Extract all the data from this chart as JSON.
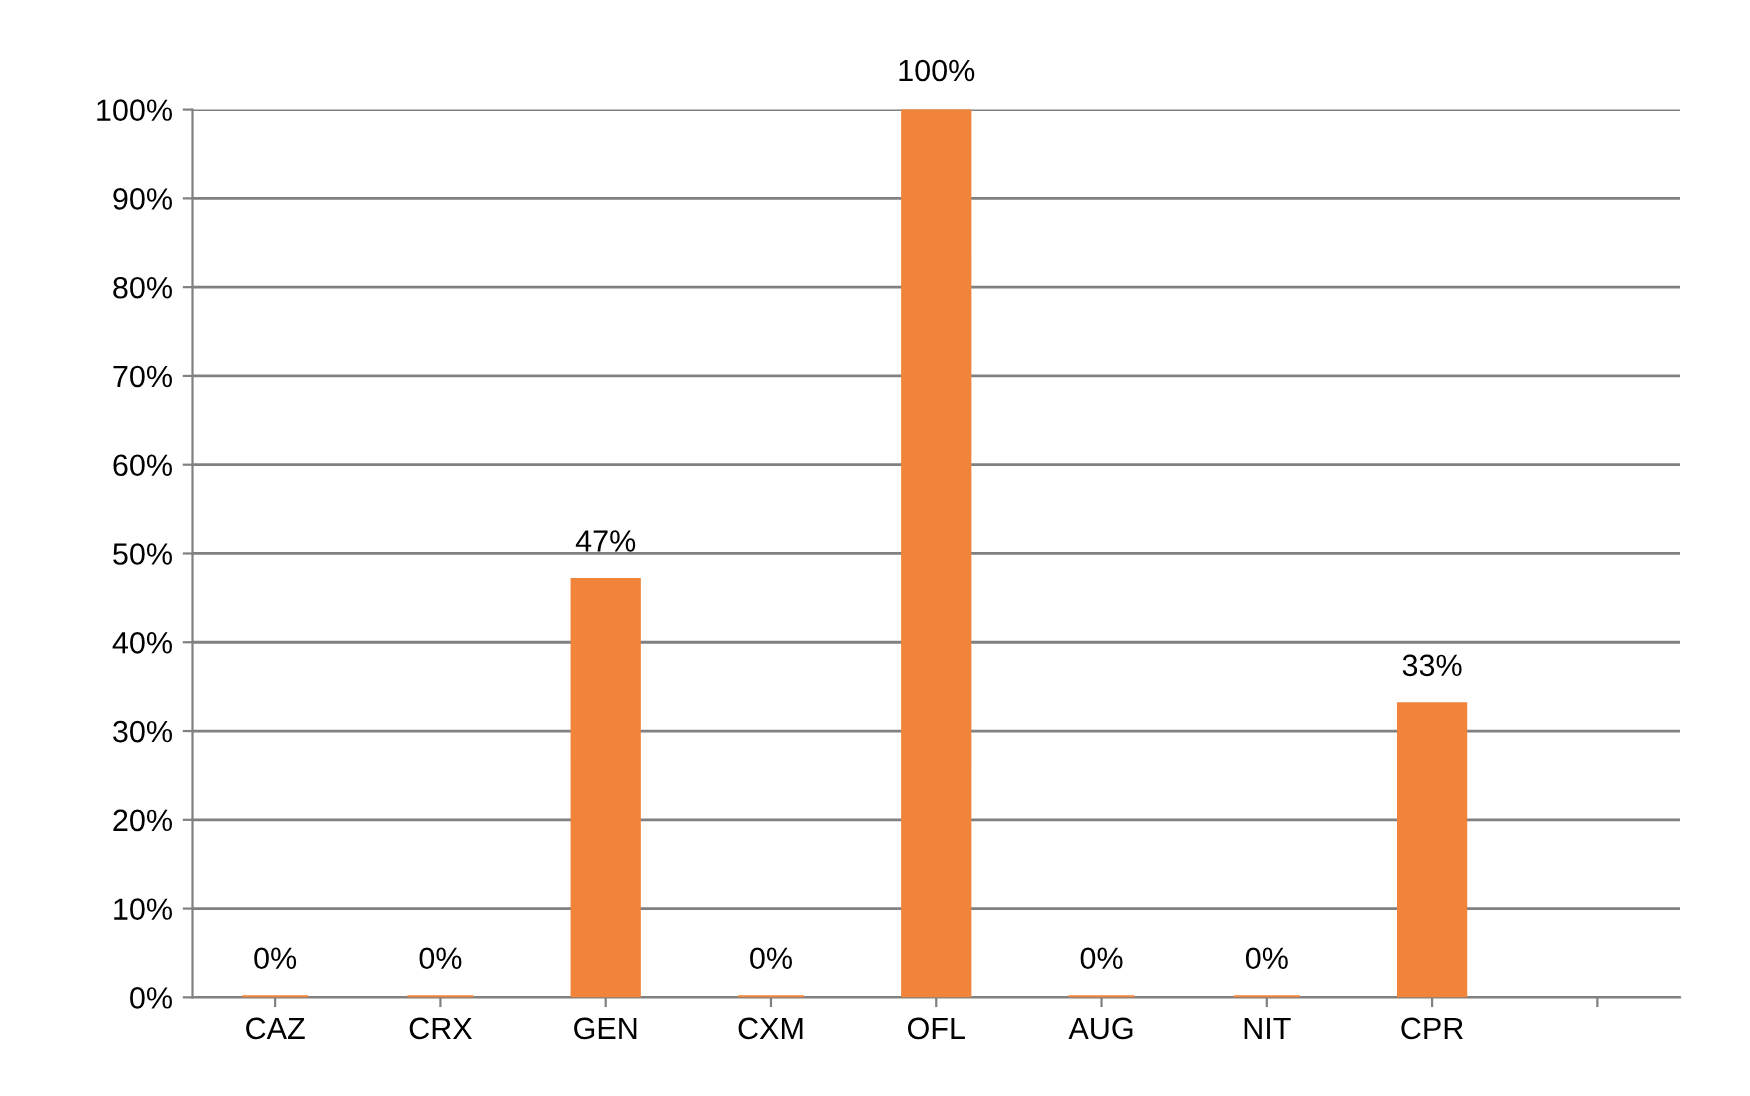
{
  "chart_data": {
    "type": "bar",
    "categories": [
      "CAZ",
      "CRX",
      "GEN",
      "CXM",
      "OFL",
      "AUG",
      "NIT",
      "CPR",
      null
    ],
    "values": [
      0,
      0,
      47,
      0,
      100,
      0,
      0,
      33,
      null
    ],
    "value_labels": [
      "0%",
      "0%",
      "47%",
      "0%",
      "100%",
      "0%",
      "0%",
      "33%",
      null
    ],
    "color": "#f0843a",
    "ylim": [
      0,
      100
    ],
    "yticks": [
      {
        "value": 0,
        "label": "0%"
      },
      {
        "value": 10,
        "label": "10%"
      },
      {
        "value": 20,
        "label": "20%"
      },
      {
        "value": 30,
        "label": "30%"
      },
      {
        "value": 40,
        "label": "40%"
      },
      {
        "value": 50,
        "label": "50%"
      },
      {
        "value": 60,
        "label": "60%"
      },
      {
        "value": 70,
        "label": "70%"
      },
      {
        "value": 80,
        "label": "80%"
      },
      {
        "value": 90,
        "label": "90%"
      },
      {
        "value": 100,
        "label": "100%"
      }
    ],
    "grid": "y"
  }
}
